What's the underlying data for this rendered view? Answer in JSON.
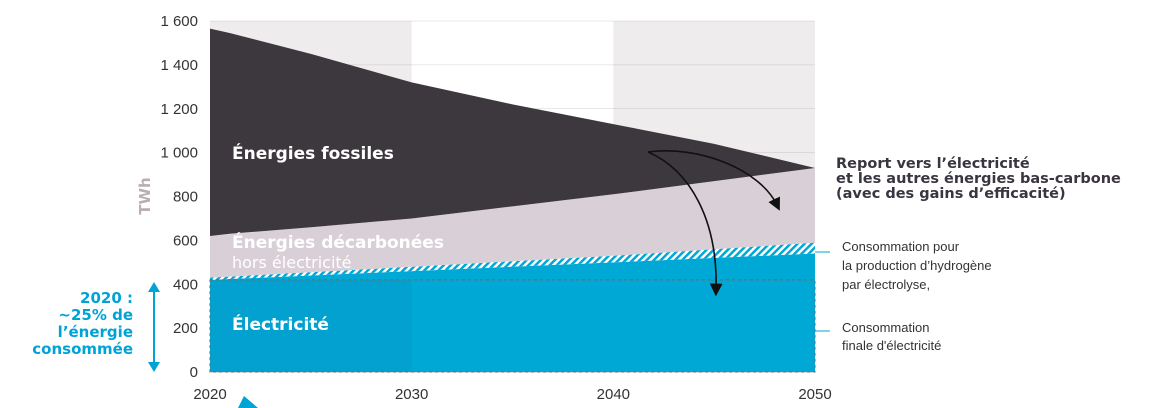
{
  "chart_data": {
    "type": "area",
    "ylabel": "TWh",
    "ylim": [
      0,
      1600
    ],
    "xlim": [
      2020,
      2050
    ],
    "x_ticks": [
      "2020",
      "2030",
      "2040",
      "2050"
    ],
    "y_ticks": [
      "0",
      "200",
      "400",
      "600",
      "800",
      "1 000",
      "1 200",
      "1 400",
      "1 600"
    ],
    "y_tick_values": [
      0,
      200,
      400,
      600,
      800,
      1000,
      1200,
      1400,
      1600
    ],
    "grid": true,
    "series": [
      {
        "name": "Électricité",
        "color": "#00a8d6",
        "x": [
          2020,
          2030,
          2040,
          2050
        ],
        "lower": [
          0,
          0,
          0,
          0
        ],
        "upper": [
          420,
          460,
          500,
          540
        ]
      },
      {
        "name": "",
        "pattern": "hatched",
        "color": "#00a8d6",
        "x": [
          2020,
          2030,
          2040,
          2050
        ],
        "lower": [
          420,
          460,
          500,
          540
        ],
        "upper": [
          430,
          480,
          530,
          590
        ]
      },
      {
        "name": "Énergies décarbonées",
        "name_line2": "hors électricité",
        "color": "#d9cfd6",
        "x": [
          2020,
          2030,
          2040,
          2050
        ],
        "lower": [
          430,
          480,
          530,
          590
        ],
        "upper": [
          620,
          700,
          810,
          930
        ]
      },
      {
        "name": "Énergies fossiles",
        "color": "#3d383d",
        "x": [
          2020,
          2021,
          2025,
          2030,
          2035,
          2040,
          2045,
          2050
        ],
        "lower": [
          620,
          630,
          660,
          700,
          755,
          810,
          870,
          930
        ],
        "upper": [
          1565,
          1545,
          1450,
          1320,
          1220,
          1130,
          1040,
          930
        ]
      }
    ],
    "annotations": {
      "report": [
        "Report vers l’électricité",
        "et les autres énergies bas-carbone",
        "(avec des gains d’efficacité)"
      ],
      "hydrogen": [
        "Consommation pour",
        "la production d’hydrogène",
        "par électrolyse,"
      ],
      "final": [
        "Consommation",
        "finale d'électricité"
      ],
      "side": [
        "2020 :",
        "~25% de",
        "l’énergie",
        "consommée"
      ]
    },
    "colors": {
      "electricity": "#00a8d6",
      "decarbonated": "#d9cfd6",
      "fossil": "#3d383d",
      "band_shade": "#efeced",
      "accent": "#00a3d6"
    }
  }
}
